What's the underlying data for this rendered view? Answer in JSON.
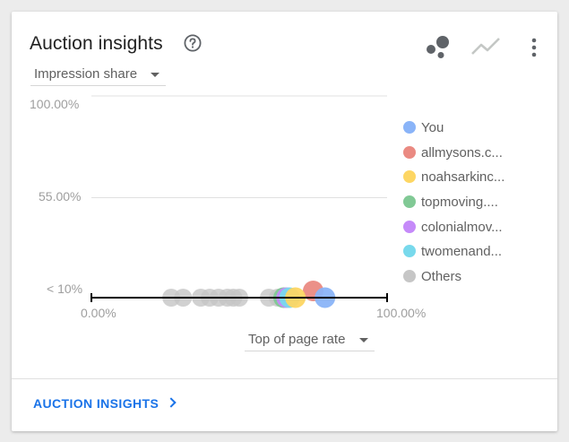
{
  "card": {
    "title": "Auction insights",
    "footer_link": "AUCTION INSIGHTS"
  },
  "icons": {
    "help": "help-circle-icon",
    "chart_bubble": "bubble-chart-icon",
    "chart_line": "line-chart-icon",
    "more": "more-vert-icon",
    "footer_chevron": "chevron-right-icon"
  },
  "controls": {
    "y_metric": "Impression share",
    "x_metric": "Top of page rate"
  },
  "chart_data": {
    "type": "scatter",
    "xlabel": "Top of page rate",
    "ylabel": "Impression share",
    "x_ticks": [
      "0.00%",
      "100.00%"
    ],
    "y_ticks": [
      "100.00%",
      "55.00%",
      "< 10%"
    ],
    "xlim": [
      0,
      100
    ],
    "ylim": [
      10,
      100
    ],
    "legend_position": "right",
    "series": [
      {
        "name": "You",
        "color": "#8ab4f8",
        "points": [
          {
            "x": 79,
            "y": 10
          }
        ]
      },
      {
        "name": "allmysons.c...",
        "color": "#ea8a82",
        "points": [
          {
            "x": 75,
            "y": 13
          }
        ]
      },
      {
        "name": "noahsarkinc...",
        "color": "#fdd663",
        "points": [
          {
            "x": 69,
            "y": 10
          }
        ]
      },
      {
        "name": "topmoving....",
        "color": "#81c995",
        "points": [
          {
            "x": 65,
            "y": 10
          }
        ]
      },
      {
        "name": "colonialmov...",
        "color": "#c58af9",
        "points": [
          {
            "x": 66,
            "y": 10
          }
        ]
      },
      {
        "name": "twomenand...",
        "color": "#78d9ec",
        "points": [
          {
            "x": 67,
            "y": 10
          }
        ]
      },
      {
        "name": "Others",
        "color": "#c6c6c6",
        "points": [
          {
            "x": 27,
            "y": 10
          },
          {
            "x": 31,
            "y": 10
          },
          {
            "x": 37,
            "y": 10
          },
          {
            "x": 40,
            "y": 10
          },
          {
            "x": 43,
            "y": 10
          },
          {
            "x": 46,
            "y": 10
          },
          {
            "x": 48,
            "y": 10
          },
          {
            "x": 50,
            "y": 10
          },
          {
            "x": 60,
            "y": 10
          },
          {
            "x": 63,
            "y": 10
          },
          {
            "x": 64,
            "y": 10
          }
        ]
      }
    ]
  }
}
